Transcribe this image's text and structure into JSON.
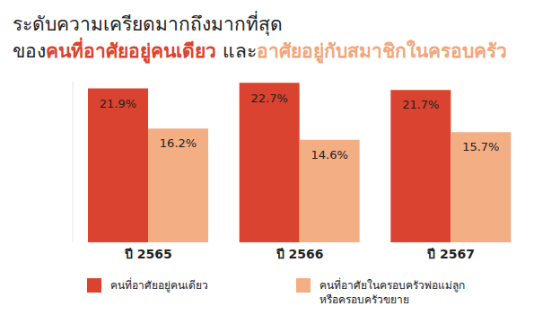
{
  "chart_data": {
    "type": "bar",
    "title": [
      [
        {
          "text": "ระดับความเครียดมากถึงมากที่สุด"
        }
      ],
      [
        {
          "text": "ของ"
        },
        {
          "text": "คนที่อาศัยอยู่คนเดียว",
          "color": "#d9432f"
        },
        {
          "text": " และ"
        },
        {
          "text": "อาศัยอยู่กับสมาชิกในครอบครัว",
          "color": "#f0a77c"
        }
      ]
    ],
    "categories": [
      "ปี 2565",
      "ปี 2566",
      "ปี 2567"
    ],
    "series": [
      {
        "name": "คนที่อาศัยอยู่คนเดียว",
        "color": "#d9432f",
        "values": [
          21.9,
          22.7,
          21.7
        ],
        "value_labels": [
          "21.9%",
          "22.7%",
          "21.7%"
        ]
      },
      {
        "name": "คนที่อาศัยในครอบครัวพ่อแม่ลูก\nหรือครอบครัวขยาย",
        "color": "#f4ae84",
        "values": [
          16.2,
          14.6,
          15.7
        ],
        "value_labels": [
          "16.2%",
          "14.6%",
          "15.7%"
        ]
      }
    ],
    "ylim": [
      0,
      23
    ],
    "tick_labels": "x",
    "data_labels": true,
    "grid": false
  }
}
